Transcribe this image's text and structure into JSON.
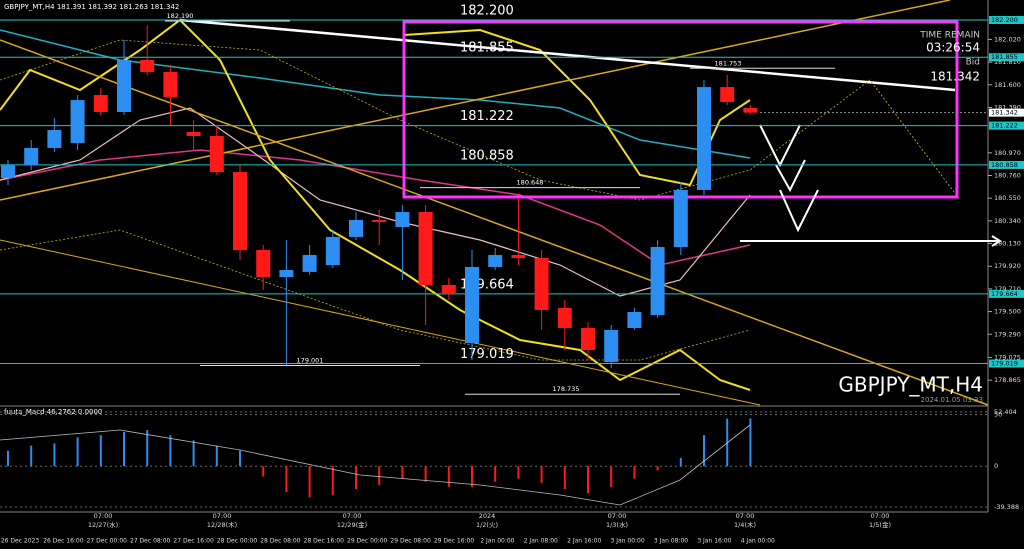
{
  "header": {
    "symbol_info": "GBPJPY_MT,H4  181.391 181.392 181.263 181.342"
  },
  "info_panel": {
    "time_remain_label": "TIME REMAIN",
    "time_remain": "03:26:54",
    "bid_label": "Bid",
    "bid": "181.342"
  },
  "watermark": "GBPJPY_MT,H4",
  "server_time": "2024.01.05 03:33",
  "chart_data": [
    {
      "type": "candlestick",
      "up_color": "#2b8ef0",
      "down_color": "#ff1a1a",
      "open": [
        180.737,
        180.857,
        181.015,
        181.061,
        181.505,
        181.348,
        181.829,
        181.718,
        181.163,
        181.126,
        180.792,
        180.07,
        179.82,
        179.867,
        179.931,
        180.191,
        180.348,
        180.283,
        180.422,
        179.746,
        179.209,
        179.913,
        180.024,
        179.996,
        179.533,
        179.348,
        179.033,
        179.348,
        179.468,
        180.098,
        180.626,
        181.579,
        181.385
      ],
      "high": [
        180.904,
        181.089,
        181.292,
        181.505,
        181.57,
        182.015,
        182.154,
        181.783,
        181.274,
        181.228,
        180.857,
        180.117,
        180.163,
        180.117,
        180.255,
        180.422,
        180.441,
        180.487,
        180.487,
        179.811,
        180.07,
        180.089,
        180.552,
        180.07,
        179.607,
        179.404,
        179.376,
        179.536,
        180.163,
        180.7,
        181.644,
        181.691,
        181.413
      ],
      "low": [
        180.672,
        180.811,
        180.978,
        180.996,
        181.32,
        181.32,
        181.691,
        181.228,
        180.996,
        180.765,
        179.978,
        179.7,
        179.005,
        179.839,
        179.904,
        180.163,
        180.117,
        179.792,
        179.376,
        179.607,
        179.052,
        179.885,
        179.931,
        179.33,
        179.144,
        179.052,
        178.978,
        179.33,
        179.441,
        180.024,
        180.579,
        181.413,
        181.329
      ],
      "close": [
        180.857,
        181.015,
        181.181,
        181.459,
        181.348,
        181.829,
        181.718,
        181.487,
        181.126,
        180.792,
        180.07,
        179.82,
        179.885,
        180.024,
        180.191,
        180.348,
        180.33,
        180.422,
        179.746,
        179.672,
        179.913,
        180.024,
        179.996,
        179.515,
        179.348,
        179.144,
        179.33,
        179.496,
        180.098,
        180.626,
        181.579,
        181.441,
        181.342
      ],
      "ylim": [
        178.635,
        182.385
      ],
      "yticks": [
        {
          "value": 182.02,
          "label": "182.020"
        },
        {
          "value": 181.81,
          "label": "181.810"
        },
        {
          "value": 181.6,
          "label": "181.600"
        },
        {
          "value": 181.39,
          "label": "181.390"
        },
        {
          "value": 180.97,
          "label": "180.970"
        },
        {
          "value": 180.76,
          "label": "180.760"
        },
        {
          "value": 180.55,
          "label": "180.550"
        },
        {
          "value": 180.34,
          "label": "180.340"
        },
        {
          "value": 180.13,
          "label": "180.130"
        },
        {
          "value": 179.92,
          "label": "179.920"
        },
        {
          "value": 179.71,
          "label": "179.710"
        },
        {
          "value": 179.5,
          "label": "179.500"
        },
        {
          "value": 179.29,
          "label": "179.290"
        },
        {
          "value": 179.075,
          "label": "179.075"
        },
        {
          "value": 178.865,
          "label": "178.865"
        }
      ],
      "levels": [
        {
          "value": 182.2,
          "label": "182.200"
        },
        {
          "value": 181.855,
          "label": "181.855"
        },
        {
          "value": 181.222,
          "label": "181.222"
        },
        {
          "value": 180.858,
          "label": "180.858"
        },
        {
          "value": 179.664,
          "label": "179.664"
        },
        {
          "value": 179.019,
          "label": "179.019"
        }
      ],
      "level_color": "#1fc8c8",
      "price_marks": [
        {
          "value": 182.19,
          "label": "182.190"
        },
        {
          "value": 181.753,
          "label": "181.753"
        },
        {
          "value": 180.648,
          "label": "180.648"
        },
        {
          "value": 179.001,
          "label": "179.001"
        },
        {
          "value": 178.735,
          "label": "178.735"
        }
      ],
      "current_price": {
        "value": 181.342,
        "label": "181.342"
      },
      "time_labels": [
        "26 Dec 2023",
        "26 Dec 16:00",
        "27 Dec 00:00",
        "27 Dec 08:00",
        "27 Dec 16:00",
        "28 Dec 00:00",
        "28 Dec 08:00",
        "28 Dec 16:00",
        "29 Dec 00:00",
        "29 Dec 08:00",
        "29 Dec 16:00",
        "2 Jan 00:00",
        "2 Jan 08:00",
        "2 Jan 16:00",
        "3 Jan 00:00",
        "3 Jan 08:00",
        "3 Jan 16:00",
        "4 Jan 00:00"
      ],
      "day_labels": [
        {
          "time": "07:00",
          "date": "12/27(水)"
        },
        {
          "time": "07:00",
          "date": "12/28(木)"
        },
        {
          "time": "07:00",
          "date": "12/29(金)"
        },
        {
          "time": "2024",
          "date": "1/2(火)"
        },
        {
          "time": "07:00",
          "date": "1/3(水)"
        },
        {
          "time": "07:00",
          "date": "1/4(木)"
        },
        {
          "time": "07:00",
          "date": "1/5(金)"
        }
      ]
    },
    {
      "type": "bar",
      "title": "fuuta_Macd 46.2762 0.0000",
      "up_color": "#2b8ef0",
      "down_color": "#ff1a1a",
      "values": [
        15,
        20,
        22,
        28,
        30,
        33,
        35,
        30,
        25,
        20,
        15,
        -10,
        -25,
        -30,
        -28,
        -22,
        -18,
        -12,
        -15,
        -20,
        -20,
        -15,
        -12,
        -16,
        -22,
        -26,
        -20,
        -12,
        -4,
        8,
        30,
        46,
        46.2762
      ],
      "ylim": [
        -39.388,
        52.404
      ],
      "yticks": [
        {
          "value": 52.404,
          "label": "52.404"
        },
        50,
        0,
        {
          "value": -39.388,
          "label": "-39.388"
        }
      ]
    }
  ]
}
